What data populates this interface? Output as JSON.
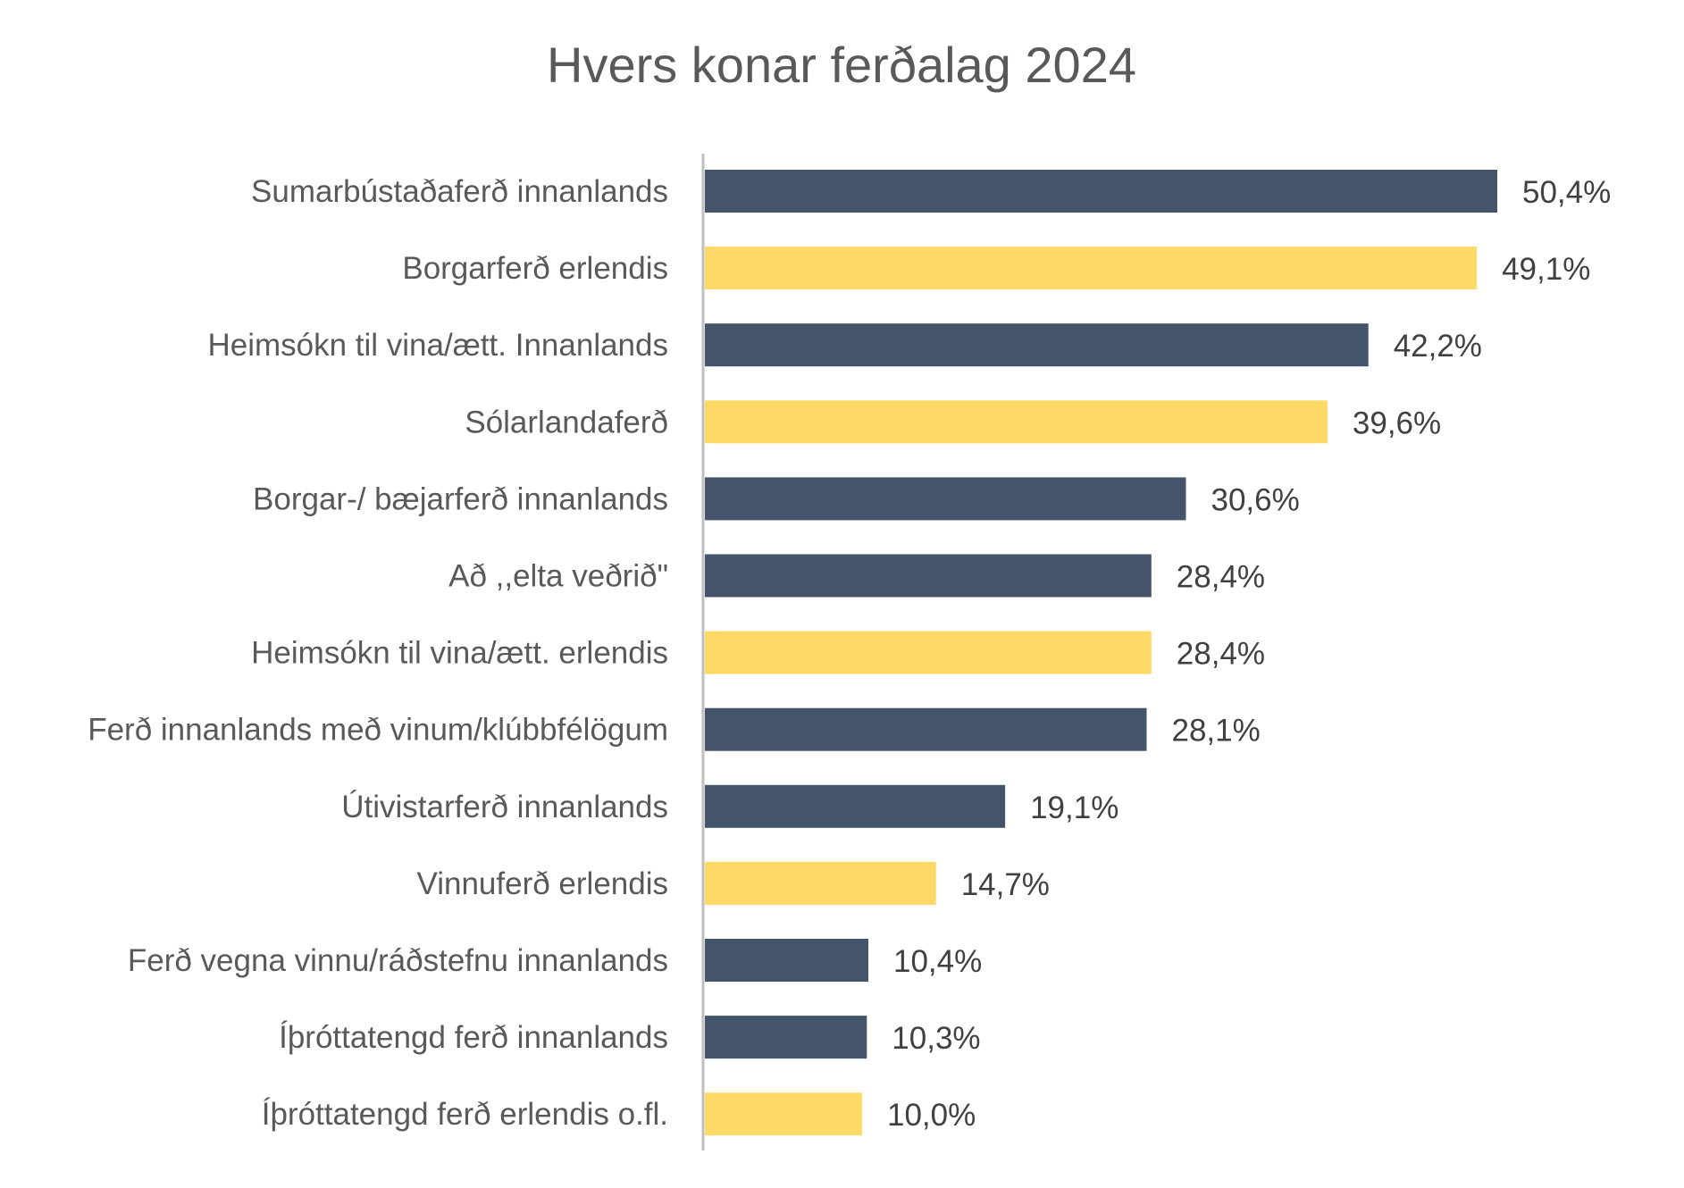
{
  "chart_data": {
    "type": "bar",
    "orientation": "horizontal",
    "title": "Hvers konar ferðalag 2024",
    "xlabel": "",
    "ylabel": "",
    "xlim": [
      0,
      50.4
    ],
    "grid": false,
    "legend": "none",
    "colors": {
      "innanlands": "#44546A",
      "erlendis": "#FFD966"
    },
    "categories": [
      "Sumarbústaðaferð innanlands",
      "Borgarferð erlendis",
      "Heimsókn til vina/ætt. Innanlands",
      "Sólarlandaferð",
      "Borgar-/ bæjarferð innanlands",
      "Að ,,elta veðrið\"",
      "Heimsókn til vina/ætt. erlendis",
      "Ferð innanlands með vinum/klúbbfélögum",
      "Útivistarferð innanlands",
      "Vinnuferð erlendis",
      "Ferð vegna vinnu/ráðstefnu innanlands",
      "Íþróttatengd ferð innanlands",
      "Íþróttatengd ferð erlendis o.fl."
    ],
    "values": [
      50.4,
      49.1,
      42.2,
      39.6,
      30.6,
      28.4,
      28.4,
      28.1,
      19.1,
      14.7,
      10.4,
      10.3,
      10.0
    ],
    "value_labels": [
      "50,4%",
      "49,1%",
      "42,2%",
      "39,6%",
      "30,6%",
      "28,4%",
      "28,4%",
      "28,1%",
      "19,1%",
      "14,7%",
      "10,4%",
      "10,3%",
      "10,0%"
    ],
    "bar_colors": [
      "#44546A",
      "#FFD966",
      "#44546A",
      "#FFD966",
      "#44546A",
      "#44546A",
      "#FFD966",
      "#44546A",
      "#44546A",
      "#FFD966",
      "#44546A",
      "#44546A",
      "#FFD966"
    ],
    "axis_color": "#BFBFBF"
  }
}
